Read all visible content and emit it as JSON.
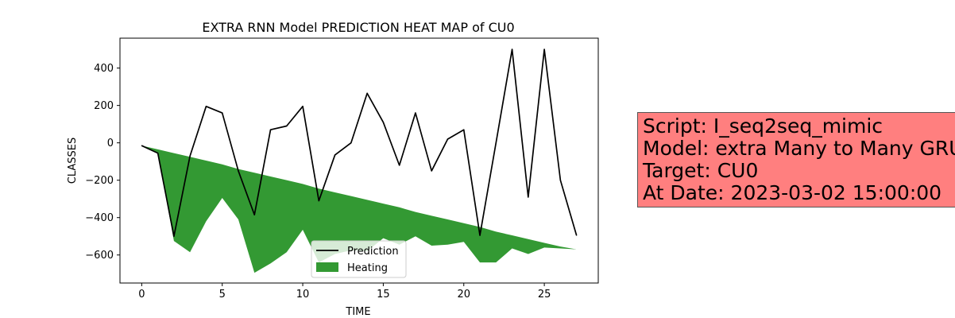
{
  "chart_data": {
    "type": "line",
    "title": "EXTRA RNN Model PREDICTION HEAT MAP of CU0",
    "xlabel": "TIME",
    "ylabel": "CLASSES",
    "xlim": [
      -1.35,
      28.35
    ],
    "ylim": [
      -750,
      560
    ],
    "xticks": [
      0,
      5,
      10,
      15,
      20,
      25
    ],
    "yticks": [
      -600,
      -400,
      -200,
      0,
      200,
      400
    ],
    "x": [
      0,
      1,
      2,
      3,
      4,
      5,
      6,
      7,
      8,
      9,
      10,
      11,
      12,
      13,
      14,
      15,
      16,
      17,
      18,
      19,
      20,
      21,
      22,
      23,
      24,
      25,
      26,
      27
    ],
    "series": [
      {
        "name": "Prediction",
        "kind": "line",
        "color": "#000000",
        "values": [
          -15,
          -55,
          -500,
          -70,
          195,
          160,
          -150,
          -385,
          70,
          90,
          195,
          -310,
          -65,
          0,
          265,
          110,
          -120,
          160,
          -150,
          20,
          70,
          -495,
          0,
          500,
          -290,
          500,
          -200,
          -495
        ]
      },
      {
        "name": "Heating",
        "kind": "fill_between",
        "color": "#339933",
        "upper": [
          -15,
          -35,
          -55,
          -75,
          -95,
          -115,
          -140,
          -160,
          -180,
          -200,
          -220,
          -245,
          -265,
          -285,
          -305,
          -325,
          -345,
          -370,
          -390,
          -410,
          -430,
          -450,
          -475,
          -495,
          -515,
          -535,
          -555,
          -570
        ],
        "lower": [
          -15,
          -55,
          -525,
          -585,
          -420,
          -295,
          -410,
          -695,
          -645,
          -585,
          -465,
          -640,
          -595,
          -575,
          -580,
          -510,
          -545,
          -500,
          -550,
          -545,
          -530,
          -640,
          -640,
          -565,
          -595,
          -560,
          -565,
          -570
        ]
      }
    ],
    "legend": {
      "position": "lower center",
      "entries": [
        "Prediction",
        "Heating"
      ]
    }
  },
  "info_box": {
    "lines": [
      "Script: I_seq2seq_mimic",
      "Model: extra Many to Many GRU",
      "Target: CU0",
      "At Date: 2023-03-02 15:00:00"
    ],
    "background": "#ff7f7f"
  }
}
